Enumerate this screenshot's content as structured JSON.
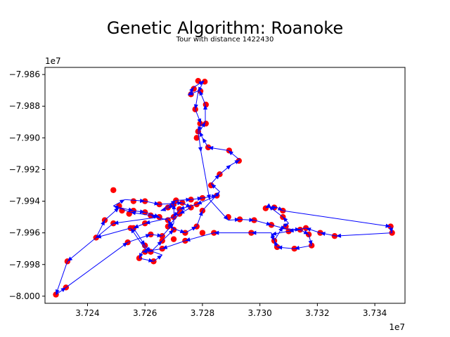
{
  "chart_data": {
    "type": "scatter",
    "title": "Genetic Algorithm: Roanoke",
    "subtitle": "Tour with distance 1422430",
    "xlabel": "",
    "ylabel": "",
    "x_offset_label": "1e7",
    "y_offset_label": "1e7",
    "xlim": [
      3.72252,
      3.73505
    ],
    "ylim": [
      -8.00045,
      -7.98555
    ],
    "xticks": [
      3.724,
      3.726,
      3.728,
      3.73,
      3.732,
      3.734
    ],
    "xtick_labels": [
      "3.724",
      "3.726",
      "3.728",
      "3.730",
      "3.732",
      "3.734"
    ],
    "yticks": [
      -7.986,
      -7.988,
      -7.99,
      -7.992,
      -7.994,
      -7.996,
      -7.998,
      -8.0
    ],
    "ytick_labels": [
      "−7.986",
      "−7.988",
      "−7.990",
      "−7.992",
      "−7.994",
      "−7.996",
      "−7.998",
      "−8.000"
    ],
    "grid": false,
    "point_color": "#ff0000",
    "route_color": "#0000ff",
    "tour": [
      [
        3.72701,
        -7.9942
      ],
      [
        3.7268,
        -7.99445
      ],
      [
        3.72655,
        -7.9946
      ],
      [
        3.72708,
        -7.99395
      ],
      [
        3.7276,
        -7.9939
      ],
      [
        3.728,
        -7.9938
      ],
      [
        3.7285,
        -7.99365
      ],
      [
        3.7278,
        -7.9942
      ],
      [
        3.7272,
        -7.9945
      ],
      [
        3.727,
        -7.995
      ],
      [
        3.726,
        -7.9954
      ],
      [
        3.7256,
        -7.9957
      ],
      [
        3.726,
        -7.9968
      ],
      [
        3.7262,
        -7.9972
      ],
      [
        3.7266,
        -7.9965
      ],
      [
        3.727,
        -7.9958
      ],
      [
        3.7268,
        -7.9952
      ],
      [
        3.7262,
        -7.9949
      ],
      [
        3.7255,
        -7.9947
      ],
      [
        3.7249,
        -7.9943
      ],
      [
        3.7253,
        -7.9939
      ],
      [
        3.726,
        -7.994
      ],
      [
        3.7265,
        -7.9942
      ],
      [
        3.7273,
        -7.9941
      ],
      [
        3.7276,
        -7.9944
      ],
      [
        3.7272,
        -7.9948
      ],
      [
        3.7268,
        -7.9956
      ],
      [
        3.7274,
        -7.996
      ],
      [
        3.7278,
        -7.9956
      ],
      [
        3.728,
        -7.9946
      ],
      [
        3.7286,
        -7.9934
      ],
      [
        3.7283,
        -7.9929
      ],
      [
        3.7286,
        -7.9923
      ],
      [
        3.729,
        -7.9917
      ],
      [
        3.7293,
        -7.9914
      ],
      [
        3.7289,
        -7.9908
      ],
      [
        3.7282,
        -7.9906
      ],
      [
        3.728,
        -7.99
      ],
      [
        3.7279,
        -7.9896
      ],
      [
        3.7281,
        -7.989
      ],
      [
        3.7281,
        -7.9879
      ],
      [
        3.7279,
        -7.987
      ],
      [
        3.7275,
        -7.9873
      ],
      [
        3.7277,
        -7.9868
      ],
      [
        3.72805,
        -7.9864
      ],
      [
        3.72785,
        -7.9871
      ],
      [
        3.72775,
        -7.9882
      ],
      [
        3.72795,
        -7.9891
      ],
      [
        3.72785,
        -7.9896
      ],
      [
        3.72795,
        -7.9909
      ],
      [
        3.72825,
        -7.9939
      ],
      [
        3.7289,
        -7.9952
      ],
      [
        3.7293,
        -7.99515
      ],
      [
        3.7298,
        -7.9952
      ],
      [
        3.7304,
        -7.9955
      ],
      [
        3.7309,
        -7.99575
      ],
      [
        3.7314,
        -7.9958
      ],
      [
        3.7317,
        -7.9961
      ],
      [
        3.7318,
        -7.9968
      ],
      [
        3.7312,
        -7.997
      ],
      [
        3.7306,
        -7.9969
      ],
      [
        3.7305,
        -7.9965
      ],
      [
        3.7308,
        -7.9956
      ],
      [
        3.731,
        -7.9954
      ],
      [
        3.7308,
        -7.995
      ],
      [
        3.7303,
        -7.9943
      ],
      [
        3.7302,
        -7.9944
      ],
      [
        3.7306,
        -7.9944
      ],
      [
        3.7308,
        -7.9946
      ],
      [
        3.73455,
        -7.9956
      ],
      [
        3.7346,
        -7.996
      ],
      [
        3.73265,
        -7.9962
      ],
      [
        3.7321,
        -7.996
      ],
      [
        3.7316,
        -7.9957
      ],
      [
        3.731,
        -7.9959
      ],
      [
        3.7304,
        -7.9961
      ],
      [
        3.7305,
        -7.9965
      ],
      [
        3.7304,
        -7.996
      ],
      [
        3.7297,
        -7.996
      ],
      [
        3.7284,
        -7.996
      ],
      [
        3.7274,
        -7.9965
      ],
      [
        3.7266,
        -7.997
      ],
      [
        3.7259,
        -7.9972
      ],
      [
        3.7258,
        -7.9976
      ],
      [
        3.7263,
        -7.9978
      ],
      [
        3.7266,
        -7.9974
      ],
      [
        3.726,
        -7.997
      ],
      [
        3.7255,
        -7.9957
      ],
      [
        3.7243,
        -7.9963
      ],
      [
        3.7246,
        -7.9952
      ],
      [
        3.7251,
        -7.9944
      ],
      [
        3.7256,
        -7.9946
      ],
      [
        3.726,
        -7.9947
      ],
      [
        3.7265,
        -7.995
      ],
      [
        3.7249,
        -7.9954
      ],
      [
        3.7233,
        -7.9978
      ],
      [
        3.7229,
        -7.9999
      ],
      [
        3.72325,
        -7.99945
      ],
      [
        3.7254,
        -7.9966
      ],
      [
        3.7262,
        -7.9961
      ],
      [
        3.7266,
        -7.9962
      ],
      [
        3.727,
        -7.9954
      ],
      [
        3.72701,
        -7.9942
      ]
    ],
    "cities": [
      [
        3.72785,
        -7.9864
      ],
      [
        3.72808,
        -7.98645
      ],
      [
        3.7277,
        -7.9869
      ],
      [
        3.7276,
        -7.98725
      ],
      [
        3.72793,
        -7.98705
      ],
      [
        3.72812,
        -7.9879
      ],
      [
        3.72775,
        -7.9882
      ],
      [
        3.72792,
        -7.9891
      ],
      [
        3.72785,
        -7.9896
      ],
      [
        3.72812,
        -7.9891
      ],
      [
        3.7278,
        -7.99
      ],
      [
        3.7282,
        -7.9906
      ],
      [
        3.72893,
        -7.9908
      ],
      [
        3.72927,
        -7.99145
      ],
      [
        3.7286,
        -7.9923
      ],
      [
        3.7283,
        -7.993
      ],
      [
        3.7289,
        -7.995
      ],
      [
        3.7293,
        -7.99515
      ],
      [
        3.7302,
        -7.99445
      ],
      [
        3.7305,
        -7.9944
      ],
      [
        3.7308,
        -7.9946
      ],
      [
        3.7308,
        -7.995
      ],
      [
        3.7309,
        -7.9956
      ],
      [
        3.7304,
        -7.9955
      ],
      [
        3.7305,
        -7.9965
      ],
      [
        3.7306,
        -7.9969
      ],
      [
        3.7312,
        -7.997
      ],
      [
        3.7318,
        -7.9968
      ],
      [
        3.7317,
        -7.9961
      ],
      [
        3.7314,
        -7.9958
      ],
      [
        3.7321,
        -7.996
      ],
      [
        3.7326,
        -7.9962
      ],
      [
        3.73455,
        -7.9956
      ],
      [
        3.7346,
        -7.996
      ],
      [
        3.728,
        -7.996
      ],
      [
        3.7284,
        -7.996
      ],
      [
        3.7274,
        -7.9965
      ],
      [
        3.727,
        -7.9964
      ],
      [
        3.7266,
        -7.997
      ],
      [
        3.7263,
        -7.9978
      ],
      [
        3.726,
        -7.9972
      ],
      [
        3.7258,
        -7.9976
      ],
      [
        3.7255,
        -7.9957
      ],
      [
        3.7243,
        -7.9963
      ],
      [
        3.7246,
        -7.9952
      ],
      [
        3.7249,
        -7.9954
      ],
      [
        3.7251,
        -7.9943
      ],
      [
        3.7252,
        -7.9946
      ],
      [
        3.72545,
        -7.9948
      ],
      [
        3.7256,
        -7.9946
      ],
      [
        3.726,
        -7.9947
      ],
      [
        3.7249,
        -7.9933
      ],
      [
        3.7256,
        -7.994
      ],
      [
        3.726,
        -7.994
      ],
      [
        3.7265,
        -7.9942
      ],
      [
        3.7268,
        -7.9944
      ],
      [
        3.727,
        -7.9942
      ],
      [
        3.72708,
        -7.99395
      ],
      [
        3.7273,
        -7.9941
      ],
      [
        3.7276,
        -7.9939
      ],
      [
        3.7276,
        -7.9944
      ],
      [
        3.7278,
        -7.9942
      ],
      [
        3.728,
        -7.9938
      ],
      [
        3.7285,
        -7.99365
      ],
      [
        3.7272,
        -7.9945
      ],
      [
        3.727,
        -7.995
      ],
      [
        3.7272,
        -7.9948
      ],
      [
        3.7268,
        -7.9952
      ],
      [
        3.7262,
        -7.9949
      ],
      [
        3.726,
        -7.9954
      ],
      [
        3.7256,
        -7.9957
      ],
      [
        3.726,
        -7.9968
      ],
      [
        3.7262,
        -7.9972
      ],
      [
        3.7266,
        -7.9965
      ],
      [
        3.727,
        -7.9958
      ],
      [
        3.7268,
        -7.9956
      ],
      [
        3.7274,
        -7.996
      ],
      [
        3.7278,
        -7.9956
      ],
      [
        3.728,
        -7.9946
      ],
      [
        3.7266,
        -7.9962
      ],
      [
        3.7262,
        -7.9961
      ],
      [
        3.7254,
        -7.9966
      ],
      [
        3.7233,
        -7.9978
      ],
      [
        3.7229,
        -7.9999
      ],
      [
        3.72325,
        -7.99945
      ],
      [
        3.7297,
        -7.996
      ],
      [
        3.7298,
        -7.9952
      ],
      [
        3.731,
        -7.9959
      ],
      [
        3.7316,
        -7.9957
      ],
      [
        3.7265,
        -7.995
      ]
    ]
  }
}
